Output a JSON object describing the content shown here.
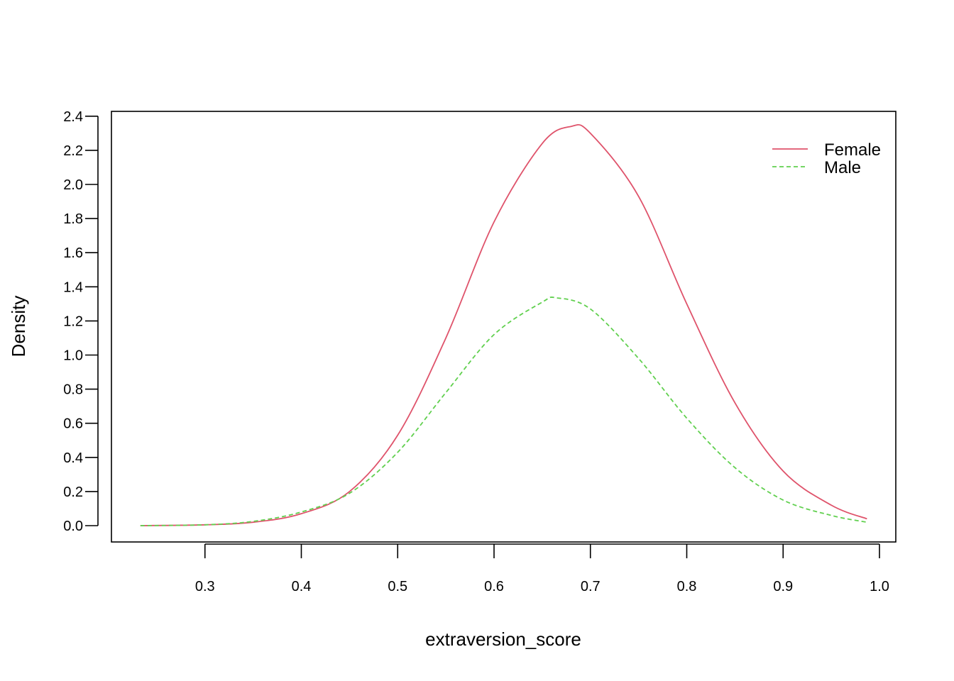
{
  "chart_data": {
    "type": "line",
    "title": "",
    "xlabel": "extraversion_score",
    "ylabel": "Density",
    "xlim": [
      0.2,
      1.0
    ],
    "ylim": [
      0,
      2.4
    ],
    "x_ticks": [
      "0.3",
      "0.4",
      "0.5",
      "0.6",
      "0.7",
      "0.8",
      "0.9",
      "1.0"
    ],
    "y_ticks": [
      "0.0",
      "0.2",
      "0.4",
      "0.6",
      "0.8",
      "1.0",
      "1.2",
      "1.4",
      "1.6",
      "1.8",
      "2.0",
      "2.2",
      "2.4"
    ],
    "grid": false,
    "legend_position": "top-right",
    "series": [
      {
        "name": "Female",
        "color": "#DF536B",
        "dash": "solid",
        "x": [
          0.233,
          0.3,
          0.35,
          0.4,
          0.45,
          0.5,
          0.55,
          0.6,
          0.65,
          0.68,
          0.7,
          0.75,
          0.8,
          0.85,
          0.9,
          0.95,
          0.987
        ],
        "y": [
          0.0,
          0.005,
          0.02,
          0.07,
          0.2,
          0.53,
          1.1,
          1.78,
          2.24,
          2.34,
          2.3,
          1.93,
          1.3,
          0.72,
          0.32,
          0.12,
          0.04
        ]
      },
      {
        "name": "Male",
        "color": "#61D04F",
        "dash": "dashed",
        "x": [
          0.233,
          0.3,
          0.35,
          0.4,
          0.45,
          0.5,
          0.55,
          0.6,
          0.65,
          0.665,
          0.7,
          0.75,
          0.8,
          0.85,
          0.9,
          0.95,
          0.987
        ],
        "y": [
          0.0,
          0.005,
          0.025,
          0.08,
          0.19,
          0.43,
          0.78,
          1.12,
          1.31,
          1.335,
          1.27,
          0.98,
          0.63,
          0.34,
          0.15,
          0.06,
          0.02
        ]
      }
    ]
  }
}
